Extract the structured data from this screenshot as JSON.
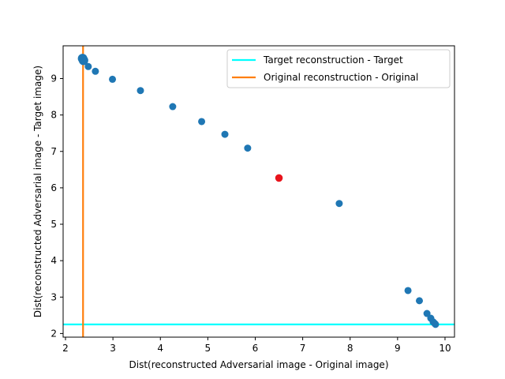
{
  "chart_data": {
    "type": "scatter",
    "title": "",
    "xlabel": "Dist(reconstructed Adversarial image - Original image)",
    "ylabel": "Dist(reconstructed Adversarial image - Target image)",
    "xlim": [
      1.95,
      10.2
    ],
    "ylim": [
      1.9,
      9.9
    ],
    "xticks": [
      2,
      3,
      4,
      5,
      6,
      7,
      8,
      9,
      10
    ],
    "yticks": [
      2,
      3,
      4,
      5,
      6,
      7,
      8,
      9
    ],
    "grid": false,
    "legend_placement": "top-right",
    "point_color": "#1f77b4",
    "highlight_color": "#e8141c",
    "points": [
      {
        "x": 2.36,
        "y": 9.55,
        "size": "large"
      },
      {
        "x": 2.38,
        "y": 9.5,
        "size": "large"
      },
      {
        "x": 2.48,
        "y": 9.33
      },
      {
        "x": 2.63,
        "y": 9.2
      },
      {
        "x": 2.99,
        "y": 8.98
      },
      {
        "x": 3.58,
        "y": 8.67
      },
      {
        "x": 4.26,
        "y": 8.23
      },
      {
        "x": 4.87,
        "y": 7.82
      },
      {
        "x": 5.36,
        "y": 7.47
      },
      {
        "x": 5.84,
        "y": 7.09
      },
      {
        "x": 7.77,
        "y": 5.57
      },
      {
        "x": 9.22,
        "y": 3.18
      },
      {
        "x": 9.46,
        "y": 2.9
      },
      {
        "x": 9.62,
        "y": 2.55
      },
      {
        "x": 9.7,
        "y": 2.42
      },
      {
        "x": 9.75,
        "y": 2.32
      },
      {
        "x": 9.78,
        "y": 2.28
      },
      {
        "x": 9.8,
        "y": 2.25
      }
    ],
    "highlight_point": {
      "x": 6.5,
      "y": 6.27
    },
    "reference_lines": [
      {
        "name": "Target reconstruction - Target",
        "orientation": "horizontal",
        "value": 2.25,
        "color": "#00ffff"
      },
      {
        "name": "Original reconstruction - Original",
        "orientation": "vertical",
        "value": 2.37,
        "color": "#ff7f0e"
      }
    ]
  }
}
